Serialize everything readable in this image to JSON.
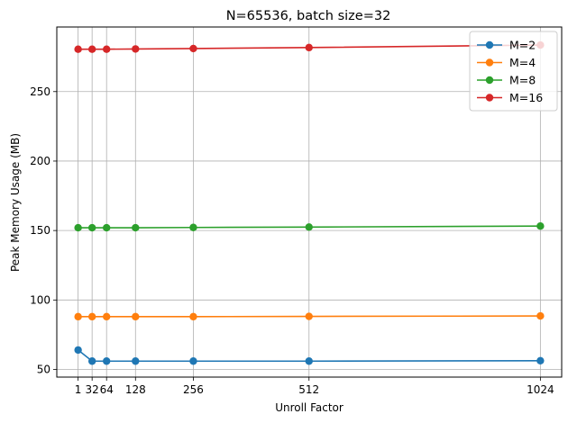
{
  "chart_data": {
    "type": "line",
    "title": "N=65536, batch size=32",
    "xlabel": "Unroll Factor",
    "ylabel": "Peak Memory Usage (MB)",
    "x": [
      1,
      32,
      64,
      128,
      256,
      512,
      1024
    ],
    "x_tick_labels": [
      "1",
      "32",
      "64",
      "128",
      "256",
      "512",
      "1024"
    ],
    "xlim": [
      -46.15,
      1071.15
    ],
    "ylim": [
      44.5,
      296.5
    ],
    "y_ticks": [
      50,
      100,
      150,
      200,
      250
    ],
    "grid": true,
    "legend_position": "top-right",
    "series": [
      {
        "name": "M=2",
        "color": "#1f77b4",
        "values": [
          64,
          56,
          56,
          56,
          56,
          56,
          56.3
        ]
      },
      {
        "name": "M=4",
        "color": "#ff7f0e",
        "values": [
          88,
          88,
          88,
          88,
          88,
          88.2,
          88.5
        ]
      },
      {
        "name": "M=8",
        "color": "#2ca02c",
        "values": [
          152,
          152,
          152,
          152,
          152.2,
          152.5,
          153.2
        ]
      },
      {
        "name": "M=16",
        "color": "#d62728",
        "values": [
          280.5,
          280.5,
          280.5,
          280.7,
          281,
          281.7,
          283.5
        ]
      }
    ]
  }
}
